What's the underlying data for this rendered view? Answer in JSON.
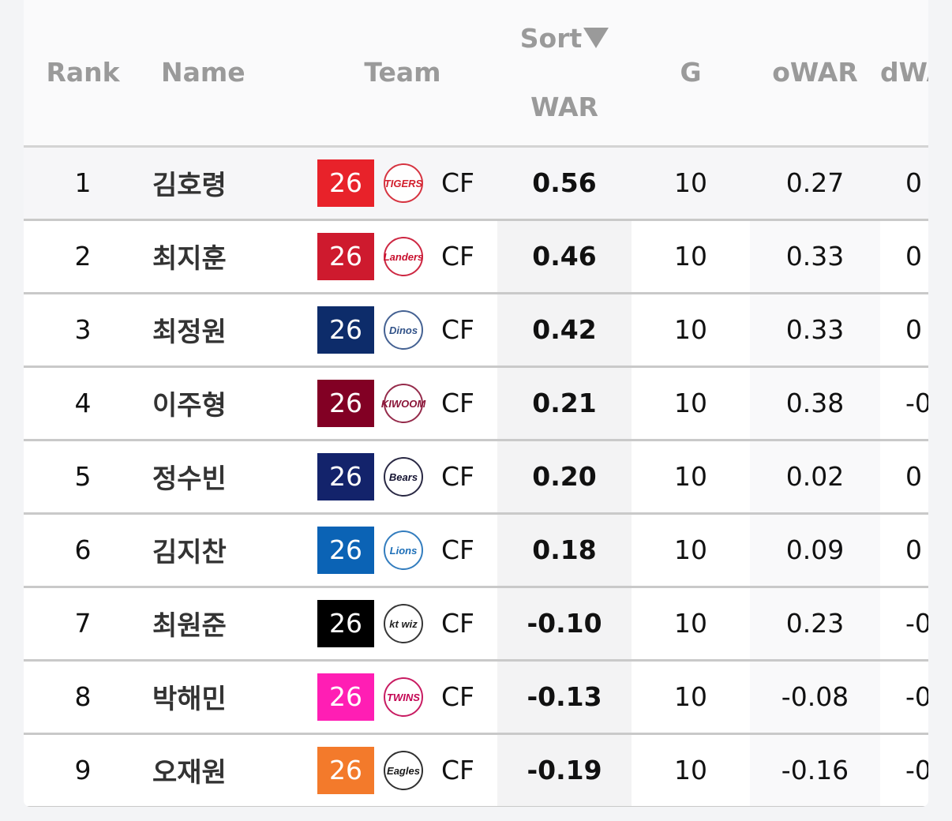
{
  "header": {
    "rank": "Rank",
    "name": "Name",
    "team": "Team",
    "sort_label": "Sort",
    "war": "WAR",
    "g": "G",
    "owar": "oWAR",
    "dwar": "dWAR"
  },
  "rows": [
    {
      "rank": "1",
      "name": "김호령",
      "age": "26",
      "team_color": "#e8222a",
      "logo": "TIGERS",
      "logo_color": "#d3202e",
      "pos": "CF",
      "war": "0.56",
      "g": "10",
      "owar": "0.27",
      "dwar": "0"
    },
    {
      "rank": "2",
      "name": "최지훈",
      "age": "26",
      "team_color": "#ce1a2e",
      "logo": "Landers",
      "logo_color": "#c8102e",
      "pos": "CF",
      "war": "0.46",
      "g": "10",
      "owar": "0.33",
      "dwar": "0"
    },
    {
      "rank": "3",
      "name": "최정원",
      "age": "26",
      "team_color": "#0d2c6a",
      "logo": "Dinos",
      "logo_color": "#315288",
      "pos": "CF",
      "war": "0.42",
      "g": "10",
      "owar": "0.33",
      "dwar": "0"
    },
    {
      "rank": "4",
      "name": "이주형",
      "age": "26",
      "team_color": "#820024",
      "logo": "KIWOOM",
      "logo_color": "#8a1538",
      "pos": "CF",
      "war": "0.21",
      "g": "10",
      "owar": "0.38",
      "dwar": "-0"
    },
    {
      "rank": "5",
      "name": "정수빈",
      "age": "26",
      "team_color": "#13236b",
      "logo": "Bears",
      "logo_color": "#131230",
      "pos": "CF",
      "war": "0.20",
      "g": "10",
      "owar": "0.02",
      "dwar": "0"
    },
    {
      "rank": "6",
      "name": "김지찬",
      "age": "26",
      "team_color": "#0b63b5",
      "logo": "Lions",
      "logo_color": "#1d6fb8",
      "pos": "CF",
      "war": "0.18",
      "g": "10",
      "owar": "0.09",
      "dwar": "0"
    },
    {
      "rank": "7",
      "name": "최원준",
      "age": "26",
      "team_color": "#000000",
      "logo": "kt wiz",
      "logo_color": "#222222",
      "pos": "CF",
      "war": "-0.10",
      "g": "10",
      "owar": "0.23",
      "dwar": "-0"
    },
    {
      "rank": "8",
      "name": "박해민",
      "age": "26",
      "team_color": "#ff1eb4",
      "logo": "TWINS",
      "logo_color": "#c30452",
      "pos": "CF",
      "war": "-0.13",
      "g": "10",
      "owar": "-0.08",
      "dwar": "-0"
    },
    {
      "rank": "9",
      "name": "오재원",
      "age": "26",
      "team_color": "#f37a2b",
      "logo": "Eagles",
      "logo_color": "#1a1a1a",
      "pos": "CF",
      "war": "-0.19",
      "g": "10",
      "owar": "-0.16",
      "dwar": "-0"
    }
  ]
}
